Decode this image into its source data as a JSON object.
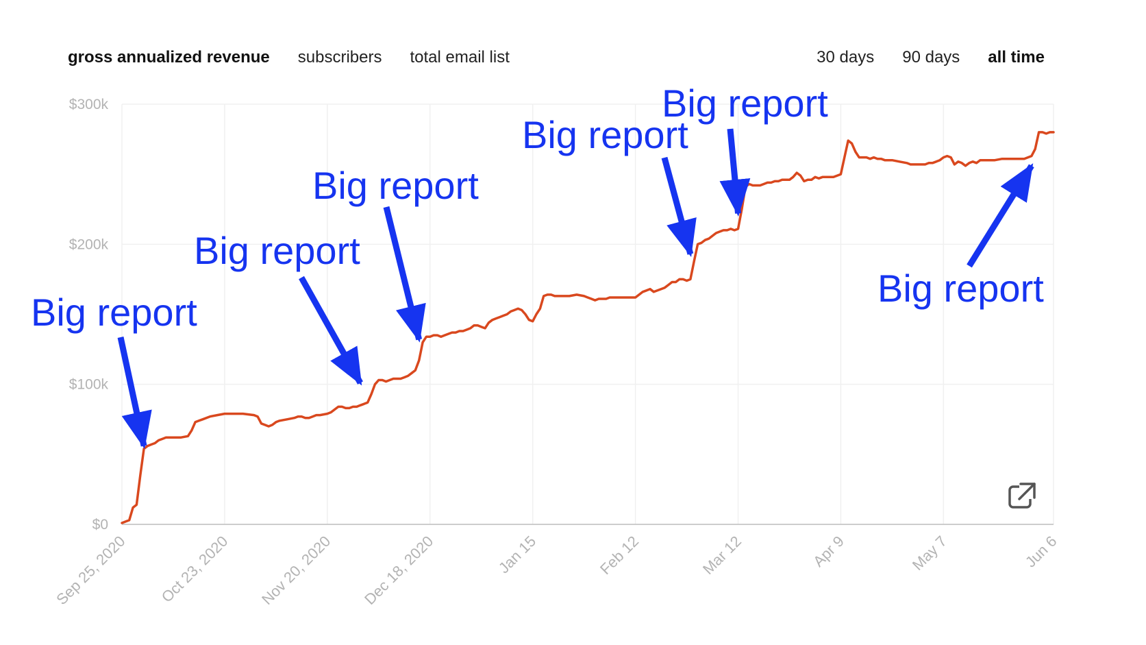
{
  "metric_tabs": [
    {
      "label": "gross annualized revenue",
      "active": true
    },
    {
      "label": "subscribers",
      "active": false
    },
    {
      "label": "total email list",
      "active": false
    }
  ],
  "range_tabs": [
    {
      "label": "30 days",
      "active": false
    },
    {
      "label": "90 days",
      "active": false
    },
    {
      "label": "all time",
      "active": true
    }
  ],
  "colors": {
    "line": "#d9481e",
    "annotation": "#1634f0",
    "grid": "#f0f0f0",
    "axis": "#cccccc",
    "tick": "#b3b3b3"
  },
  "icons": {
    "export": "external-link-icon"
  },
  "chart_data": {
    "type": "line",
    "title": "",
    "xlabel": "",
    "ylabel": "",
    "ylim": [
      0,
      300000
    ],
    "y_ticks": [
      {
        "value": 0,
        "label": "$0"
      },
      {
        "value": 100000,
        "label": "$100k"
      },
      {
        "value": 200000,
        "label": "$200k"
      },
      {
        "value": 300000,
        "label": "$300k"
      }
    ],
    "x_ticks": [
      {
        "day": 0,
        "label": "Sep 25, 2020"
      },
      {
        "day": 28,
        "label": "Oct 23, 2020"
      },
      {
        "day": 56,
        "label": "Nov 20, 2020"
      },
      {
        "day": 84,
        "label": "Dec 18, 2020"
      },
      {
        "day": 112,
        "label": "Jan 15"
      },
      {
        "day": 140,
        "label": "Feb 12"
      },
      {
        "day": 168,
        "label": "Mar 12"
      },
      {
        "day": 196,
        "label": "Apr 9"
      },
      {
        "day": 224,
        "label": "May 7"
      },
      {
        "day": 254,
        "label": "Jun 6"
      }
    ],
    "xlim": [
      0,
      254
    ],
    "grid": true,
    "series": [
      {
        "points": [
          [
            0,
            1000
          ],
          [
            1,
            2000
          ],
          [
            2,
            3000
          ],
          [
            3,
            12000
          ],
          [
            4,
            14000
          ],
          [
            5,
            35000
          ],
          [
            6,
            54000
          ],
          [
            7,
            56000
          ],
          [
            8,
            57000
          ],
          [
            9,
            58000
          ],
          [
            10,
            60000
          ],
          [
            11,
            61000
          ],
          [
            12,
            62000
          ],
          [
            14,
            62000
          ],
          [
            16,
            62000
          ],
          [
            18,
            63000
          ],
          [
            19,
            67000
          ],
          [
            20,
            73000
          ],
          [
            21,
            74000
          ],
          [
            22,
            75000
          ],
          [
            24,
            77000
          ],
          [
            26,
            78000
          ],
          [
            28,
            79000
          ],
          [
            30,
            79000
          ],
          [
            33,
            79000
          ],
          [
            36,
            78000
          ],
          [
            37,
            77000
          ],
          [
            38,
            72000
          ],
          [
            39,
            71000
          ],
          [
            40,
            70000
          ],
          [
            41,
            71000
          ],
          [
            42,
            73000
          ],
          [
            43,
            74000
          ],
          [
            45,
            75000
          ],
          [
            47,
            76000
          ],
          [
            48,
            77000
          ],
          [
            49,
            77000
          ],
          [
            50,
            76000
          ],
          [
            51,
            76000
          ],
          [
            52,
            77000
          ],
          [
            53,
            78000
          ],
          [
            54,
            78000
          ],
          [
            56,
            79000
          ],
          [
            57,
            80000
          ],
          [
            58,
            82000
          ],
          [
            59,
            84000
          ],
          [
            60,
            84000
          ],
          [
            61,
            83000
          ],
          [
            62,
            83000
          ],
          [
            63,
            84000
          ],
          [
            64,
            84000
          ],
          [
            65,
            85000
          ],
          [
            66,
            86000
          ],
          [
            67,
            87000
          ],
          [
            68,
            93000
          ],
          [
            69,
            100000
          ],
          [
            70,
            103000
          ],
          [
            71,
            103000
          ],
          [
            72,
            102000
          ],
          [
            73,
            103000
          ],
          [
            74,
            104000
          ],
          [
            75,
            104000
          ],
          [
            76,
            104000
          ],
          [
            77,
            105000
          ],
          [
            78,
            106000
          ],
          [
            79,
            108000
          ],
          [
            80,
            110000
          ],
          [
            81,
            117000
          ],
          [
            82,
            130000
          ],
          [
            83,
            134000
          ],
          [
            84,
            134000
          ],
          [
            85,
            135000
          ],
          [
            86,
            135000
          ],
          [
            87,
            134000
          ],
          [
            88,
            135000
          ],
          [
            89,
            136000
          ],
          [
            90,
            137000
          ],
          [
            91,
            137000
          ],
          [
            92,
            138000
          ],
          [
            93,
            138000
          ],
          [
            94,
            139000
          ],
          [
            95,
            140000
          ],
          [
            96,
            142000
          ],
          [
            97,
            142000
          ],
          [
            98,
            141000
          ],
          [
            99,
            140000
          ],
          [
            100,
            144000
          ],
          [
            101,
            146000
          ],
          [
            102,
            147000
          ],
          [
            103,
            148000
          ],
          [
            104,
            149000
          ],
          [
            105,
            150000
          ],
          [
            106,
            152000
          ],
          [
            107,
            153000
          ],
          [
            108,
            154000
          ],
          [
            109,
            153000
          ],
          [
            110,
            150000
          ],
          [
            111,
            146000
          ],
          [
            112,
            145000
          ],
          [
            113,
            150000
          ],
          [
            114,
            154000
          ],
          [
            115,
            163000
          ],
          [
            116,
            164000
          ],
          [
            117,
            164000
          ],
          [
            118,
            163000
          ],
          [
            120,
            163000
          ],
          [
            122,
            163000
          ],
          [
            124,
            164000
          ],
          [
            126,
            163000
          ],
          [
            127,
            162000
          ],
          [
            128,
            161000
          ],
          [
            129,
            160000
          ],
          [
            130,
            161000
          ],
          [
            131,
            161000
          ],
          [
            132,
            161000
          ],
          [
            133,
            162000
          ],
          [
            134,
            162000
          ],
          [
            136,
            162000
          ],
          [
            138,
            162000
          ],
          [
            139,
            162000
          ],
          [
            140,
            162000
          ],
          [
            141,
            164000
          ],
          [
            142,
            166000
          ],
          [
            143,
            167000
          ],
          [
            144,
            168000
          ],
          [
            145,
            166000
          ],
          [
            146,
            167000
          ],
          [
            147,
            168000
          ],
          [
            148,
            169000
          ],
          [
            149,
            171000
          ],
          [
            150,
            173000
          ],
          [
            151,
            173000
          ],
          [
            152,
            175000
          ],
          [
            153,
            175000
          ],
          [
            154,
            174000
          ],
          [
            155,
            175000
          ],
          [
            156,
            188000
          ],
          [
            157,
            200000
          ],
          [
            158,
            201000
          ],
          [
            159,
            203000
          ],
          [
            160,
            204000
          ],
          [
            161,
            206000
          ],
          [
            162,
            208000
          ],
          [
            163,
            209000
          ],
          [
            164,
            210000
          ],
          [
            165,
            210000
          ],
          [
            166,
            211000
          ],
          [
            167,
            210000
          ],
          [
            168,
            211000
          ],
          [
            169,
            225000
          ],
          [
            170,
            241000
          ],
          [
            171,
            243000
          ],
          [
            172,
            242000
          ],
          [
            173,
            242000
          ],
          [
            174,
            242000
          ],
          [
            175,
            243000
          ],
          [
            176,
            244000
          ],
          [
            177,
            244000
          ],
          [
            178,
            245000
          ],
          [
            179,
            245000
          ],
          [
            180,
            246000
          ],
          [
            181,
            246000
          ],
          [
            182,
            246000
          ],
          [
            183,
            248000
          ],
          [
            184,
            251000
          ],
          [
            185,
            249000
          ],
          [
            186,
            245000
          ],
          [
            187,
            246000
          ],
          [
            188,
            246000
          ],
          [
            189,
            248000
          ],
          [
            190,
            247000
          ],
          [
            191,
            248000
          ],
          [
            192,
            248000
          ],
          [
            193,
            248000
          ],
          [
            194,
            248000
          ],
          [
            195,
            249000
          ],
          [
            196,
            250000
          ],
          [
            197,
            262000
          ],
          [
            198,
            274000
          ],
          [
            199,
            272000
          ],
          [
            200,
            266000
          ],
          [
            201,
            262000
          ],
          [
            202,
            262000
          ],
          [
            203,
            262000
          ],
          [
            204,
            261000
          ],
          [
            205,
            262000
          ],
          [
            206,
            261000
          ],
          [
            207,
            261000
          ],
          [
            208,
            260000
          ],
          [
            210,
            260000
          ],
          [
            212,
            259000
          ],
          [
            214,
            258000
          ],
          [
            215,
            257000
          ],
          [
            217,
            257000
          ],
          [
            219,
            257000
          ],
          [
            220,
            258000
          ],
          [
            221,
            258000
          ],
          [
            222,
            259000
          ],
          [
            223,
            260000
          ],
          [
            224,
            262000
          ],
          [
            225,
            263000
          ],
          [
            226,
            262000
          ],
          [
            227,
            257000
          ],
          [
            228,
            259000
          ],
          [
            229,
            258000
          ],
          [
            230,
            256000
          ],
          [
            231,
            258000
          ],
          [
            232,
            259000
          ],
          [
            233,
            258000
          ],
          [
            234,
            260000
          ],
          [
            236,
            260000
          ],
          [
            238,
            260000
          ],
          [
            240,
            261000
          ],
          [
            242,
            261000
          ],
          [
            244,
            261000
          ],
          [
            246,
            261000
          ],
          [
            248,
            263000
          ],
          [
            249,
            268000
          ],
          [
            250,
            280000
          ],
          [
            251,
            280000
          ],
          [
            252,
            279000
          ],
          [
            253,
            280000
          ],
          [
            254,
            280000
          ]
        ]
      }
    ],
    "annotations": [
      {
        "text": "Big report",
        "target_day": 6,
        "target_value": 56000
      },
      {
        "text": "Big report",
        "target_day": 65,
        "target_value": 101000
      },
      {
        "text": "Big report",
        "target_day": 81,
        "target_value": 132000
      },
      {
        "text": "Big report",
        "target_day": 155,
        "target_value": 193000
      },
      {
        "text": "Big report",
        "target_day": 168,
        "target_value": 222000
      },
      {
        "text": "Big report",
        "target_day": 248,
        "target_value": 256000
      }
    ]
  }
}
